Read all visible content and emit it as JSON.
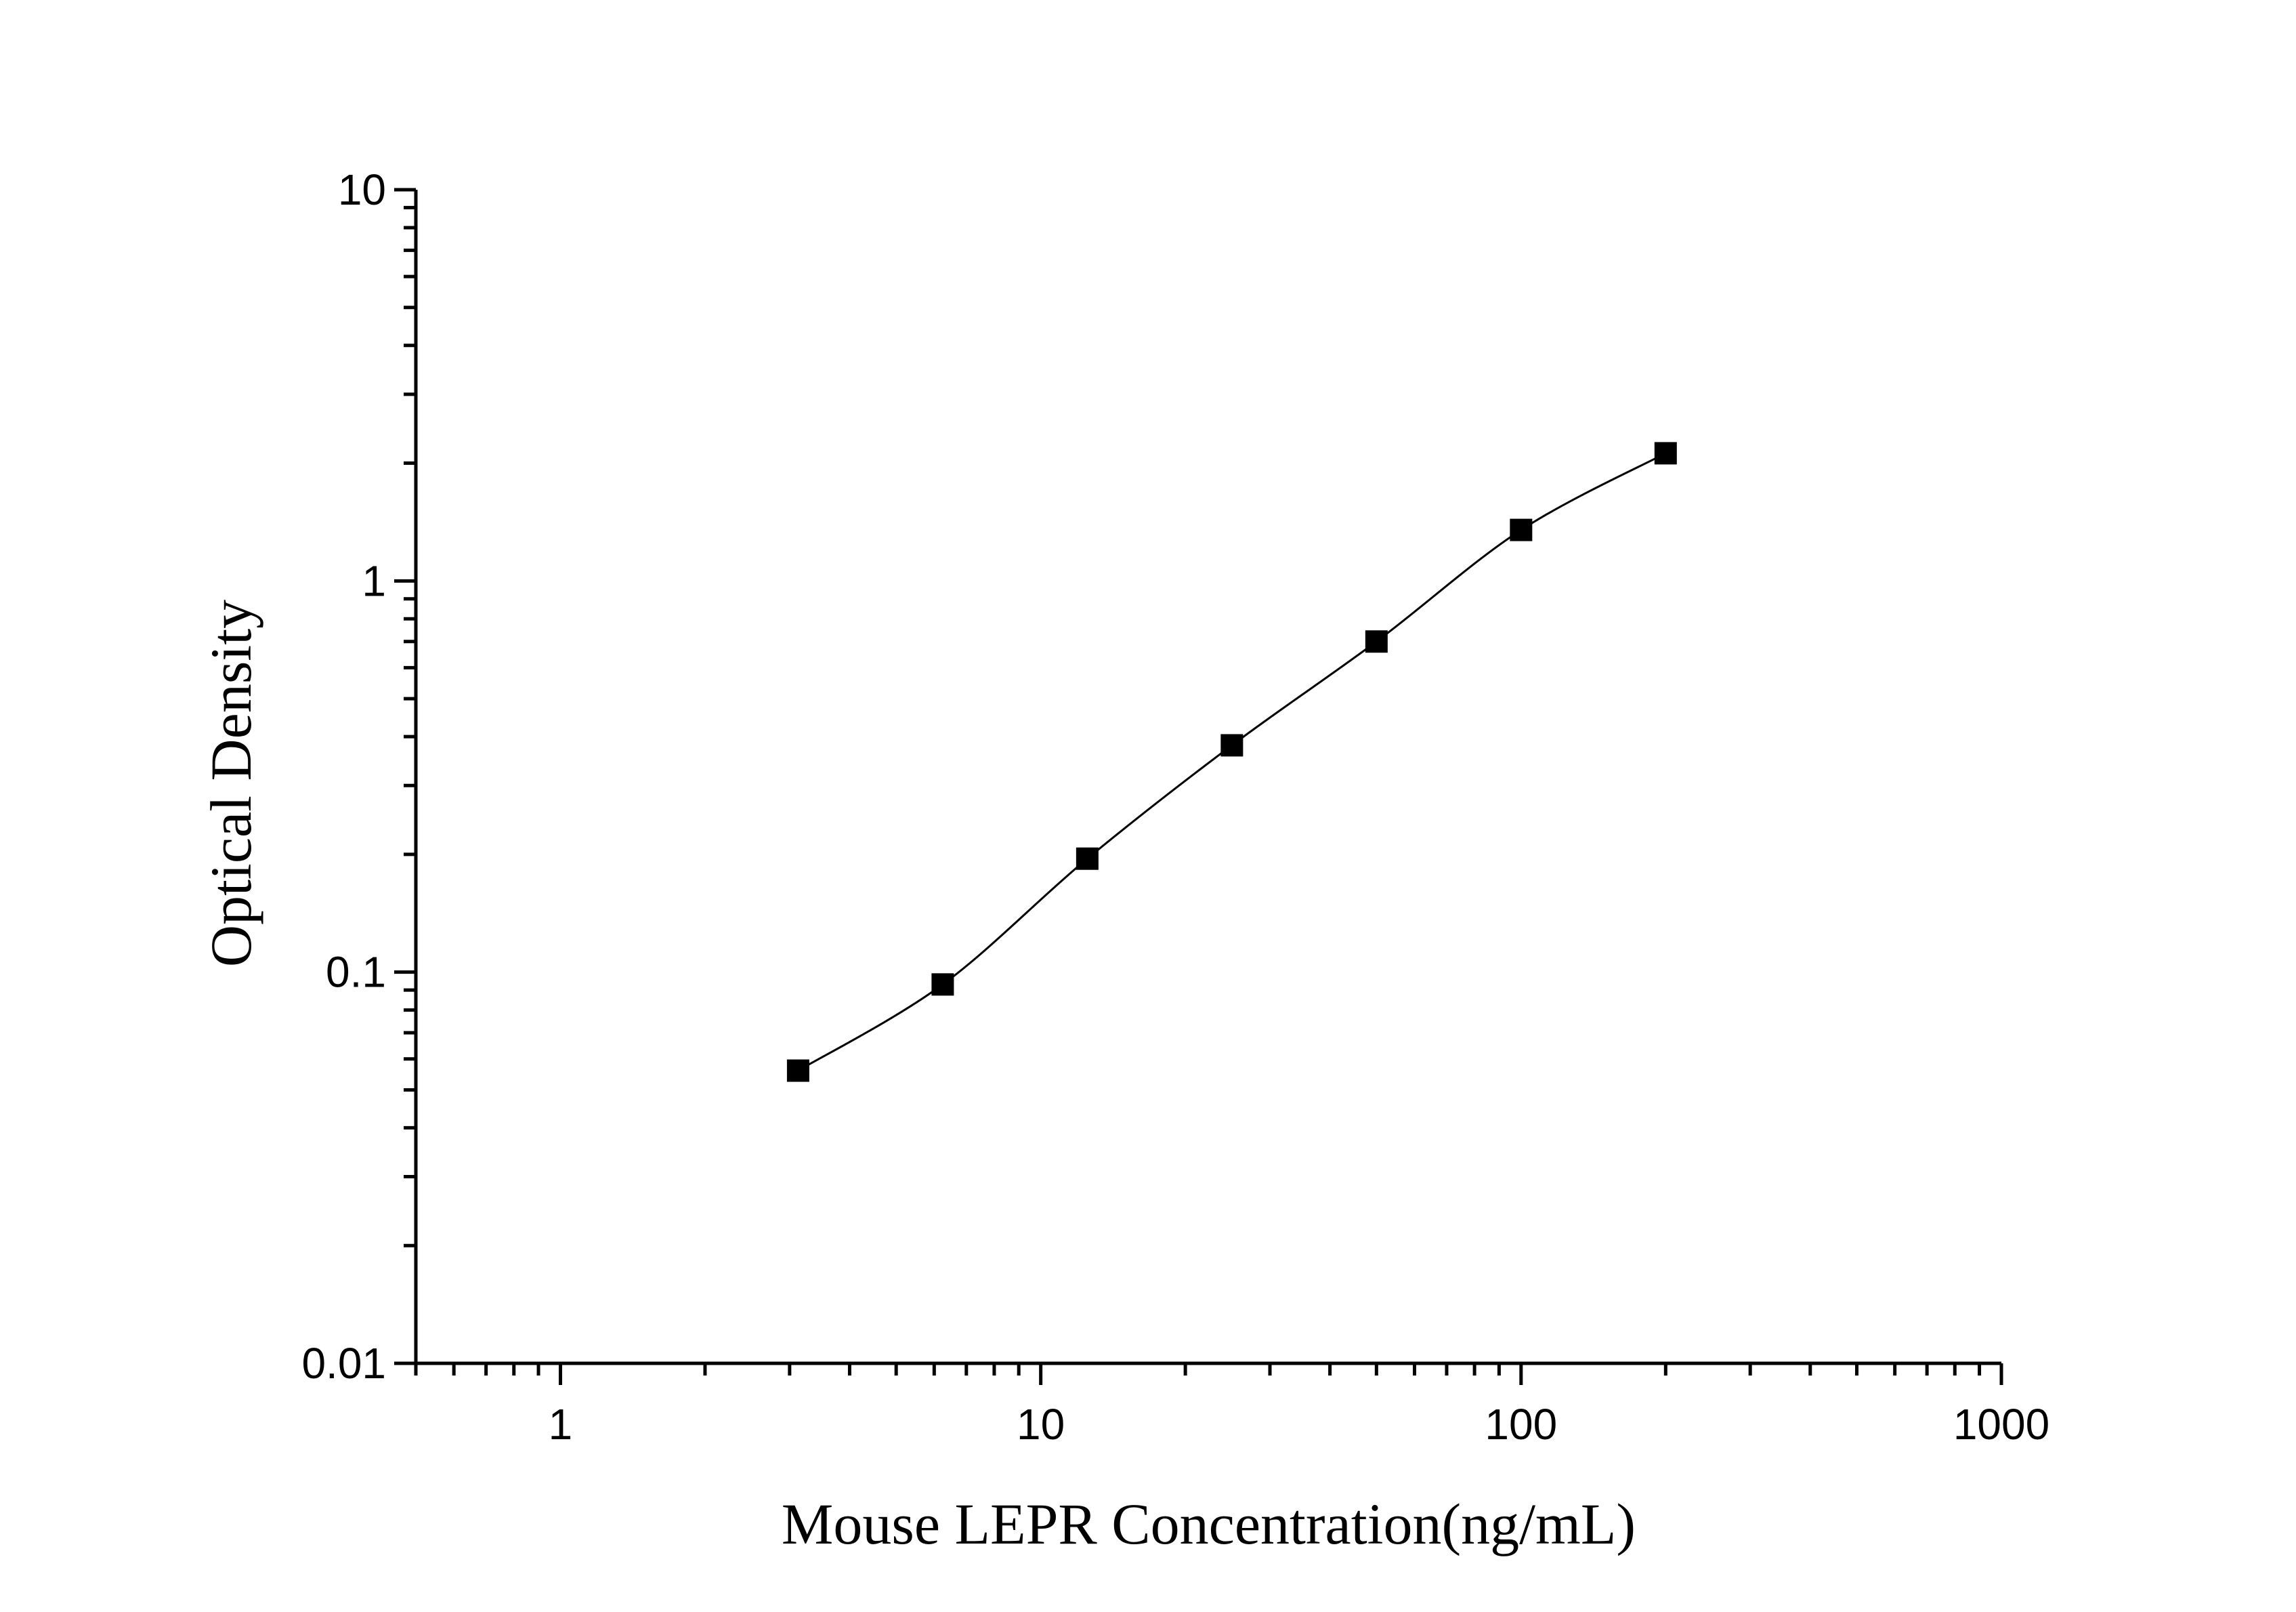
{
  "chart_data": {
    "type": "scatter",
    "xlabel": "Mouse LEPR Concentration(ng/mL)",
    "ylabel": "Optical Density",
    "x_scale": "log",
    "y_scale": "log",
    "xlim": [
      0.5,
      1000
    ],
    "ylim": [
      0.01,
      10
    ],
    "x_ticks": [
      1,
      10,
      100,
      1000
    ],
    "x_tick_labels": [
      "1",
      "10",
      "100",
      "1000"
    ],
    "y_ticks": [
      0.01,
      0.1,
      1,
      10
    ],
    "y_tick_labels": [
      "0.01",
      "0.1",
      "1",
      "10"
    ],
    "grid": false,
    "series": [
      {
        "marker": "square",
        "fit_line": true,
        "color": "#000000",
        "x": [
          3.125,
          6.25,
          12.5,
          25,
          50,
          100,
          200
        ],
        "y": [
          0.056,
          0.093,
          0.195,
          0.38,
          0.7,
          1.35,
          2.12
        ]
      }
    ]
  }
}
